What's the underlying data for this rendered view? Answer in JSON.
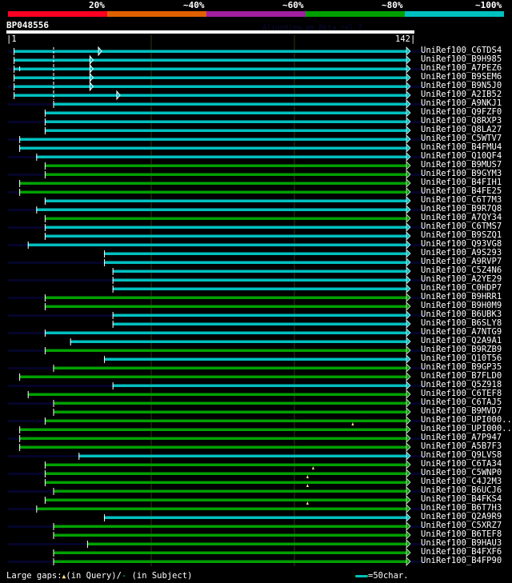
{
  "header": {
    "percent_labels": [
      "20%",
      "~40%",
      "~60%",
      "~80%",
      "~100%"
    ],
    "score_colors": [
      "#ff0022",
      "#e06000",
      "#a020a0",
      "#00a000",
      "#00c0c0"
    ],
    "query_id": "BP048556",
    "watermark": "AlignView.pm Beta rel.7",
    "ruler_start": "|1",
    "ruler_end": "142|"
  },
  "query_length": 142,
  "colors": {
    "cyan": "#00c0c0",
    "green": "#00a000",
    "stripe": "#04042a",
    "guide": "#33330f"
  },
  "hits": [
    {
      "label": "UniRef100_C6TDS4",
      "color": "cyan",
      "start": 3,
      "subject_gap_dash": 17,
      "open_arrow": 33
    },
    {
      "label": "UniRef100_B9H985",
      "color": "cyan",
      "start": 3,
      "subject_gap_dash": 17,
      "open_arrow": 30
    },
    {
      "label": "UniRef100_A7PEZ6",
      "color": "cyan",
      "start": 3,
      "subject_gap_dash": 17,
      "open_arrow": 30,
      "tick": 5
    },
    {
      "label": "UniRef100_B9SEM6",
      "color": "cyan",
      "start": 3,
      "subject_gap_dash": 17,
      "open_arrow": 30
    },
    {
      "label": "UniRef100_B9N5J0",
      "color": "cyan",
      "start": 3,
      "subject_gap_dash": 17,
      "open_arrow": 30
    },
    {
      "label": "UniRef100_A2IB52",
      "color": "cyan",
      "start": 3,
      "subject_gap_dash": 17,
      "open_arrow": 39.5
    },
    {
      "label": "UniRef100_A9NKJ1",
      "color": "cyan",
      "start": 17
    },
    {
      "label": "UniRef100_Q9FZF0",
      "color": "cyan",
      "start": 14
    },
    {
      "label": "UniRef100_Q8RXP3",
      "color": "cyan",
      "start": 14
    },
    {
      "label": "UniRef100_Q8LA27",
      "color": "cyan",
      "start": 14
    },
    {
      "label": "UniRef100_C5WTV7",
      "color": "cyan",
      "start": 5
    },
    {
      "label": "UniRef100_B4FMU4",
      "color": "cyan",
      "start": 5
    },
    {
      "label": "UniRef100_Q10QF4",
      "color": "cyan",
      "start": 11
    },
    {
      "label": "UniRef100_B9MUS7",
      "color": "green",
      "start": 14
    },
    {
      "label": "UniRef100_B9GYM3",
      "color": "green",
      "start": 14
    },
    {
      "label": "UniRef100_B4FIH1",
      "color": "green",
      "start": 5
    },
    {
      "label": "UniRef100_B4FE25",
      "color": "green",
      "start": 5
    },
    {
      "label": "UniRef100_C6T7M3",
      "color": "cyan",
      "start": 14
    },
    {
      "label": "UniRef100_B9R7Q8",
      "color": "cyan",
      "start": 11
    },
    {
      "label": "UniRef100_A7QY34",
      "color": "green",
      "start": 14
    },
    {
      "label": "UniRef100_C6TMS7",
      "color": "cyan",
      "start": 14
    },
    {
      "label": "UniRef100_B9SZQ1",
      "color": "cyan",
      "start": 14
    },
    {
      "label": "UniRef100_Q93VG8",
      "color": "cyan",
      "start": 8
    },
    {
      "label": "UniRef100_A9S293",
      "color": "cyan",
      "start": 35
    },
    {
      "label": "UniRef100_A9RVP7",
      "color": "cyan",
      "start": 35
    },
    {
      "label": "UniRef100_C5Z4N6",
      "color": "cyan",
      "start": 38
    },
    {
      "label": "UniRef100_A2YE29",
      "color": "cyan",
      "start": 38
    },
    {
      "label": "UniRef100_C0HDP7",
      "color": "cyan",
      "start": 38
    },
    {
      "label": "UniRef100_B9HRR1",
      "color": "green",
      "start": 14
    },
    {
      "label": "UniRef100_B9H0M9",
      "color": "green",
      "start": 14
    },
    {
      "label": "UniRef100_B6UBK3",
      "color": "cyan",
      "start": 38
    },
    {
      "label": "UniRef100_B6SLY8",
      "color": "cyan",
      "start": 38
    },
    {
      "label": "UniRef100_A7NTG9",
      "color": "cyan",
      "start": 14
    },
    {
      "label": "UniRef100_Q2A9A1",
      "color": "cyan",
      "start": 23
    },
    {
      "label": "UniRef100_B9RZB9",
      "color": "green",
      "start": 14
    },
    {
      "label": "UniRef100_Q10T56",
      "color": "cyan",
      "start": 35
    },
    {
      "label": "UniRef100_B9GP35",
      "color": "green",
      "start": 17
    },
    {
      "label": "UniRef100_B7FLD0",
      "color": "green",
      "start": 5
    },
    {
      "label": "UniRef100_Q5Z918",
      "color": "cyan",
      "start": 38
    },
    {
      "label": "UniRef100_C6TEF8",
      "color": "green",
      "start": 8
    },
    {
      "label": "UniRef100_C6TAJ5",
      "color": "green",
      "start": 17
    },
    {
      "label": "UniRef100_B9MVD7",
      "color": "green",
      "start": 17
    },
    {
      "label": "UniRef100_UPI000..",
      "color": "green",
      "start": 14,
      "query_gap": 123
    },
    {
      "label": "UniRef100_UPI000..",
      "color": "green",
      "start": 5
    },
    {
      "label": "UniRef100_A7P947",
      "color": "green",
      "start": 5
    },
    {
      "label": "UniRef100_A5B7F3",
      "color": "green",
      "start": 5
    },
    {
      "label": "UniRef100_Q9LVS8",
      "color": "cyan",
      "start": 26
    },
    {
      "label": "UniRef100_C6TA34",
      "color": "green",
      "start": 14,
      "query_gap": 109
    },
    {
      "label": "UniRef100_C5WNP0",
      "color": "green",
      "start": 14,
      "query_gap": 107
    },
    {
      "label": "UniRef100_C4J2M3",
      "color": "green",
      "start": 14,
      "query_gap": 107
    },
    {
      "label": "UniRef100_B6UCJ6",
      "color": "green",
      "start": 17
    },
    {
      "label": "UniRef100_B4FKS4",
      "color": "green",
      "start": 14,
      "query_gap": 107
    },
    {
      "label": "UniRef100_B6T7H3",
      "color": "green",
      "start": 11
    },
    {
      "label": "UniRef100_Q2A9R9",
      "color": "cyan",
      "start": 35
    },
    {
      "label": "UniRef100_C5XRZ7",
      "color": "green",
      "start": 17
    },
    {
      "label": "UniRef100_B6TEF8",
      "color": "green",
      "start": 17
    },
    {
      "label": "UniRef100_B9HAU3",
      "color": "green",
      "start": 29
    },
    {
      "label": "UniRef100_B4FXF6",
      "color": "green",
      "start": 17
    },
    {
      "label": "UniRef100_B4FP90",
      "color": "green",
      "start": 17
    }
  ],
  "legend": {
    "prefix": "Large gaps:",
    "query_text": "(in Query)/",
    "subject_mark": "-",
    "subject_text": " (in Subject)",
    "scale_text": "=50char."
  }
}
